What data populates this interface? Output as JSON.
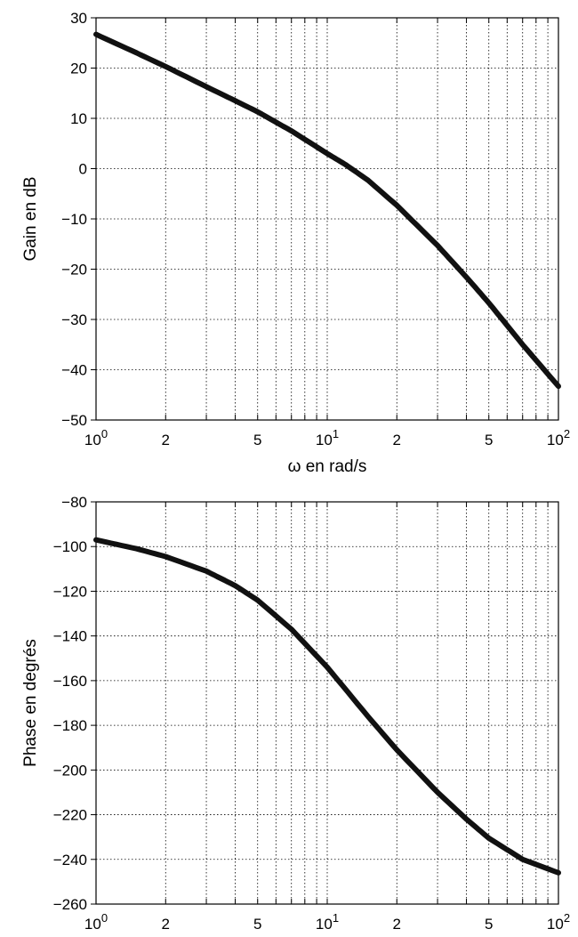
{
  "chart_data": [
    {
      "type": "line",
      "xscale": "log",
      "xlim": [
        1,
        100
      ],
      "ylim": [
        -50,
        30
      ],
      "xlabel": "ω en rad/s",
      "ylabel": "Gain en dB",
      "grid": true,
      "x_tick_labels": [
        {
          "value": 1,
          "base": "10",
          "exp": "0"
        },
        {
          "value": 2,
          "base": "2",
          "exp": ""
        },
        {
          "value": 5,
          "base": "5",
          "exp": ""
        },
        {
          "value": 10,
          "base": "10",
          "exp": "1"
        },
        {
          "value": 20,
          "base": "2",
          "exp": ""
        },
        {
          "value": 50,
          "base": "5",
          "exp": ""
        },
        {
          "value": 100,
          "base": "10",
          "exp": "2"
        }
      ],
      "y_ticks": [
        30,
        20,
        10,
        0,
        -10,
        -20,
        -30,
        -40,
        -50
      ],
      "series": [
        {
          "x": [
            1,
            1.5,
            2,
            3,
            4,
            5,
            7,
            10,
            12,
            15,
            20,
            30,
            40,
            50,
            70,
            100
          ],
          "y": [
            26.7,
            23.0,
            20.3,
            16.3,
            13.5,
            11.3,
            7.5,
            3.0,
            0.8,
            -2.3,
            -7.3,
            -15.3,
            -21.6,
            -26.7,
            -35.0,
            -43.3
          ]
        }
      ]
    },
    {
      "type": "line",
      "xscale": "log",
      "xlim": [
        1,
        100
      ],
      "ylim": [
        -260,
        -80
      ],
      "xlabel": "",
      "ylabel": "Phase en degrés",
      "grid": true,
      "x_tick_labels": [
        {
          "value": 1,
          "base": "10",
          "exp": "0"
        },
        {
          "value": 2,
          "base": "2",
          "exp": ""
        },
        {
          "value": 5,
          "base": "5",
          "exp": ""
        },
        {
          "value": 10,
          "base": "10",
          "exp": "1"
        },
        {
          "value": 20,
          "base": "2",
          "exp": ""
        },
        {
          "value": 50,
          "base": "5",
          "exp": ""
        },
        {
          "value": 100,
          "base": "10",
          "exp": "2"
        }
      ],
      "y_ticks": [
        -80,
        -100,
        -120,
        -140,
        -160,
        -180,
        -200,
        -220,
        -240,
        -260
      ],
      "series": [
        {
          "x": [
            1,
            1.5,
            2,
            3,
            4,
            5,
            7,
            10,
            15,
            20,
            30,
            40,
            50,
            70,
            100
          ],
          "y": [
            -97,
            -101,
            -104.5,
            -111,
            -117.5,
            -124,
            -137,
            -154,
            -176,
            -191,
            -210,
            -222,
            -230.5,
            -240,
            -246
          ]
        }
      ]
    }
  ]
}
